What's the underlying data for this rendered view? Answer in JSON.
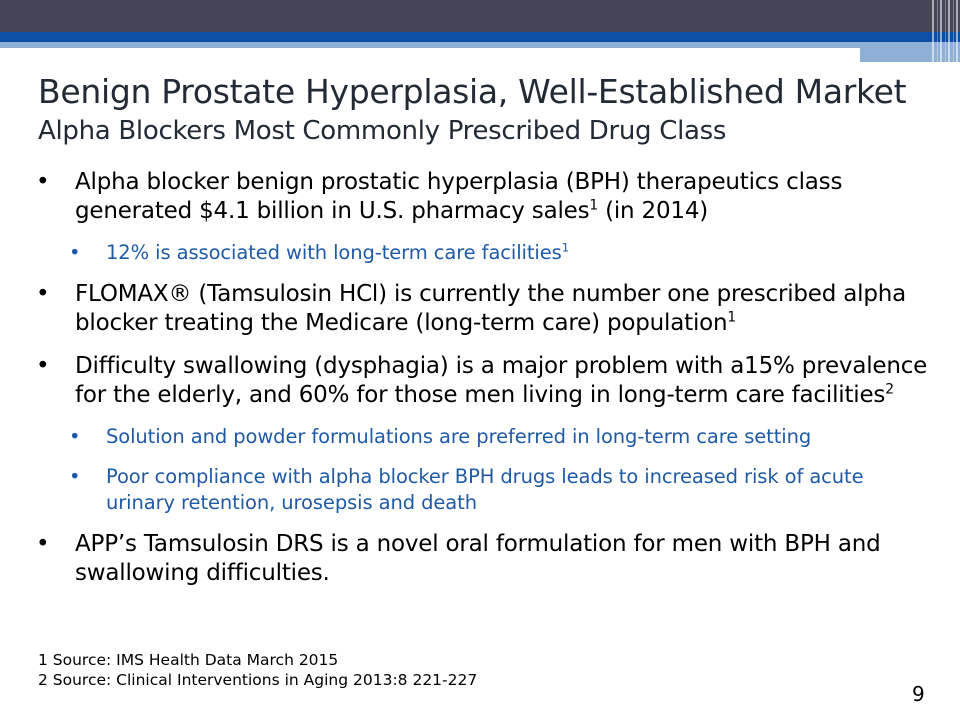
{
  "title": "Benign Prostate Hyperplasia, Well-Established Market",
  "subtitle": "Alpha Blockers Most Commonly Prescribed Drug Class",
  "bullets": [
    {
      "text": "Alpha blocker benign prostatic hyperplasia (BPH) therapeutics class generated $4.1 billion in U.S. pharmacy sales",
      "sup": "1",
      "after": " (in 2014)"
    },
    {
      "text": "12% is associated with long-term care facilities",
      "sup": "1",
      "after": ""
    },
    {
      "text": "FLOMAX® (Tamsulosin HCl) is currently the number one prescribed alpha blocker treating the Medicare (long-term care) population",
      "sup": "1",
      "after": ""
    },
    {
      "text": "Difficulty swallowing (dysphagia) is a major problem with a15% prevalence for the elderly, and 60% for those men living in long-term care facilities",
      "sup": "2",
      "after": ""
    },
    {
      "text": "Solution and powder formulations are preferred in long-term care setting",
      "sup": "",
      "after": ""
    },
    {
      "text": "Poor compliance with alpha blocker BPH drugs leads to increased risk of acute urinary retention, urosepsis and death",
      "sup": "",
      "after": ""
    },
    {
      "text": "APP’s Tamsulosin DRS is a novel oral formulation for men with BPH and swallowing difficulties.",
      "sup": "",
      "after": ""
    }
  ],
  "bullet_char": "•",
  "footnotes": [
    "1 Source: IMS Health Data March 2015",
    "2 Source: Clinical Interventions in Aging 2013:8 221-227"
  ],
  "page_number": "9",
  "colors": {
    "header_dark": "#464558",
    "header_blue": "#0d4fa3",
    "sub_bullet": "#1f5aa6",
    "title": "#222a35"
  }
}
